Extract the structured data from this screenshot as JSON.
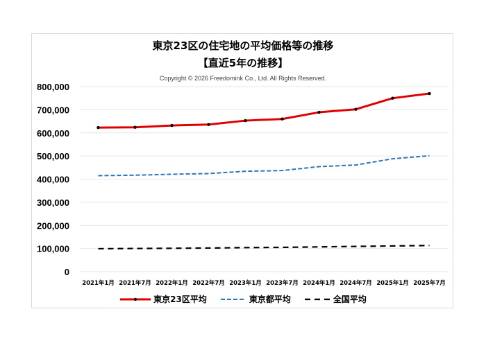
{
  "title": {
    "line1": "東京23区の住宅地の平均価格等の推移",
    "line2": "【直近5年の推移】"
  },
  "copyright": "Copyright © 2026 Freedomink Co., Ltd. All Rights Reserved.",
  "legend": [
    {
      "label": "東京23区平均",
      "color": "#e00000",
      "style": "solid-marker"
    },
    {
      "label": "東京都平均",
      "color": "#2e75b6",
      "style": "dashed"
    },
    {
      "label": "全国平均",
      "color": "#000000",
      "style": "long-dashed"
    }
  ],
  "chart_data": {
    "type": "line",
    "title": "東京23区の住宅地の平均価格等の推移 【直近5年の推移】",
    "subtitle": "Copyright © 2026 Freedomink Co., Ltd. All Rights Reserved.",
    "xlabel": "",
    "ylabel": "",
    "categories": [
      "2021年1月",
      "2021年7月",
      "2022年1月",
      "2022年7月",
      "2023年1月",
      "2023年7月",
      "2024年1月",
      "2024年7月",
      "2025年1月",
      "2025年7月"
    ],
    "series": [
      {
        "name": "東京23区平均",
        "color": "#e00000",
        "values": [
          623000,
          624000,
          632000,
          636000,
          653000,
          660000,
          689000,
          702000,
          750000,
          770000
        ]
      },
      {
        "name": "東京都平均",
        "color": "#2e75b6",
        "values": [
          415000,
          417000,
          421000,
          424000,
          434000,
          437000,
          454000,
          461000,
          488000,
          501000
        ]
      },
      {
        "name": "全国平均",
        "color": "#000000",
        "values": [
          99000,
          100000,
          101000,
          102000,
          104000,
          105000,
          107000,
          109000,
          111000,
          113000
        ]
      }
    ],
    "yticks": [
      "0",
      "100,000",
      "200,000",
      "300,000",
      "400,000",
      "500,000",
      "600,000",
      "700,000",
      "800,000"
    ],
    "ylim": [
      0,
      800000
    ],
    "grid": true,
    "legend_position": "bottom"
  }
}
